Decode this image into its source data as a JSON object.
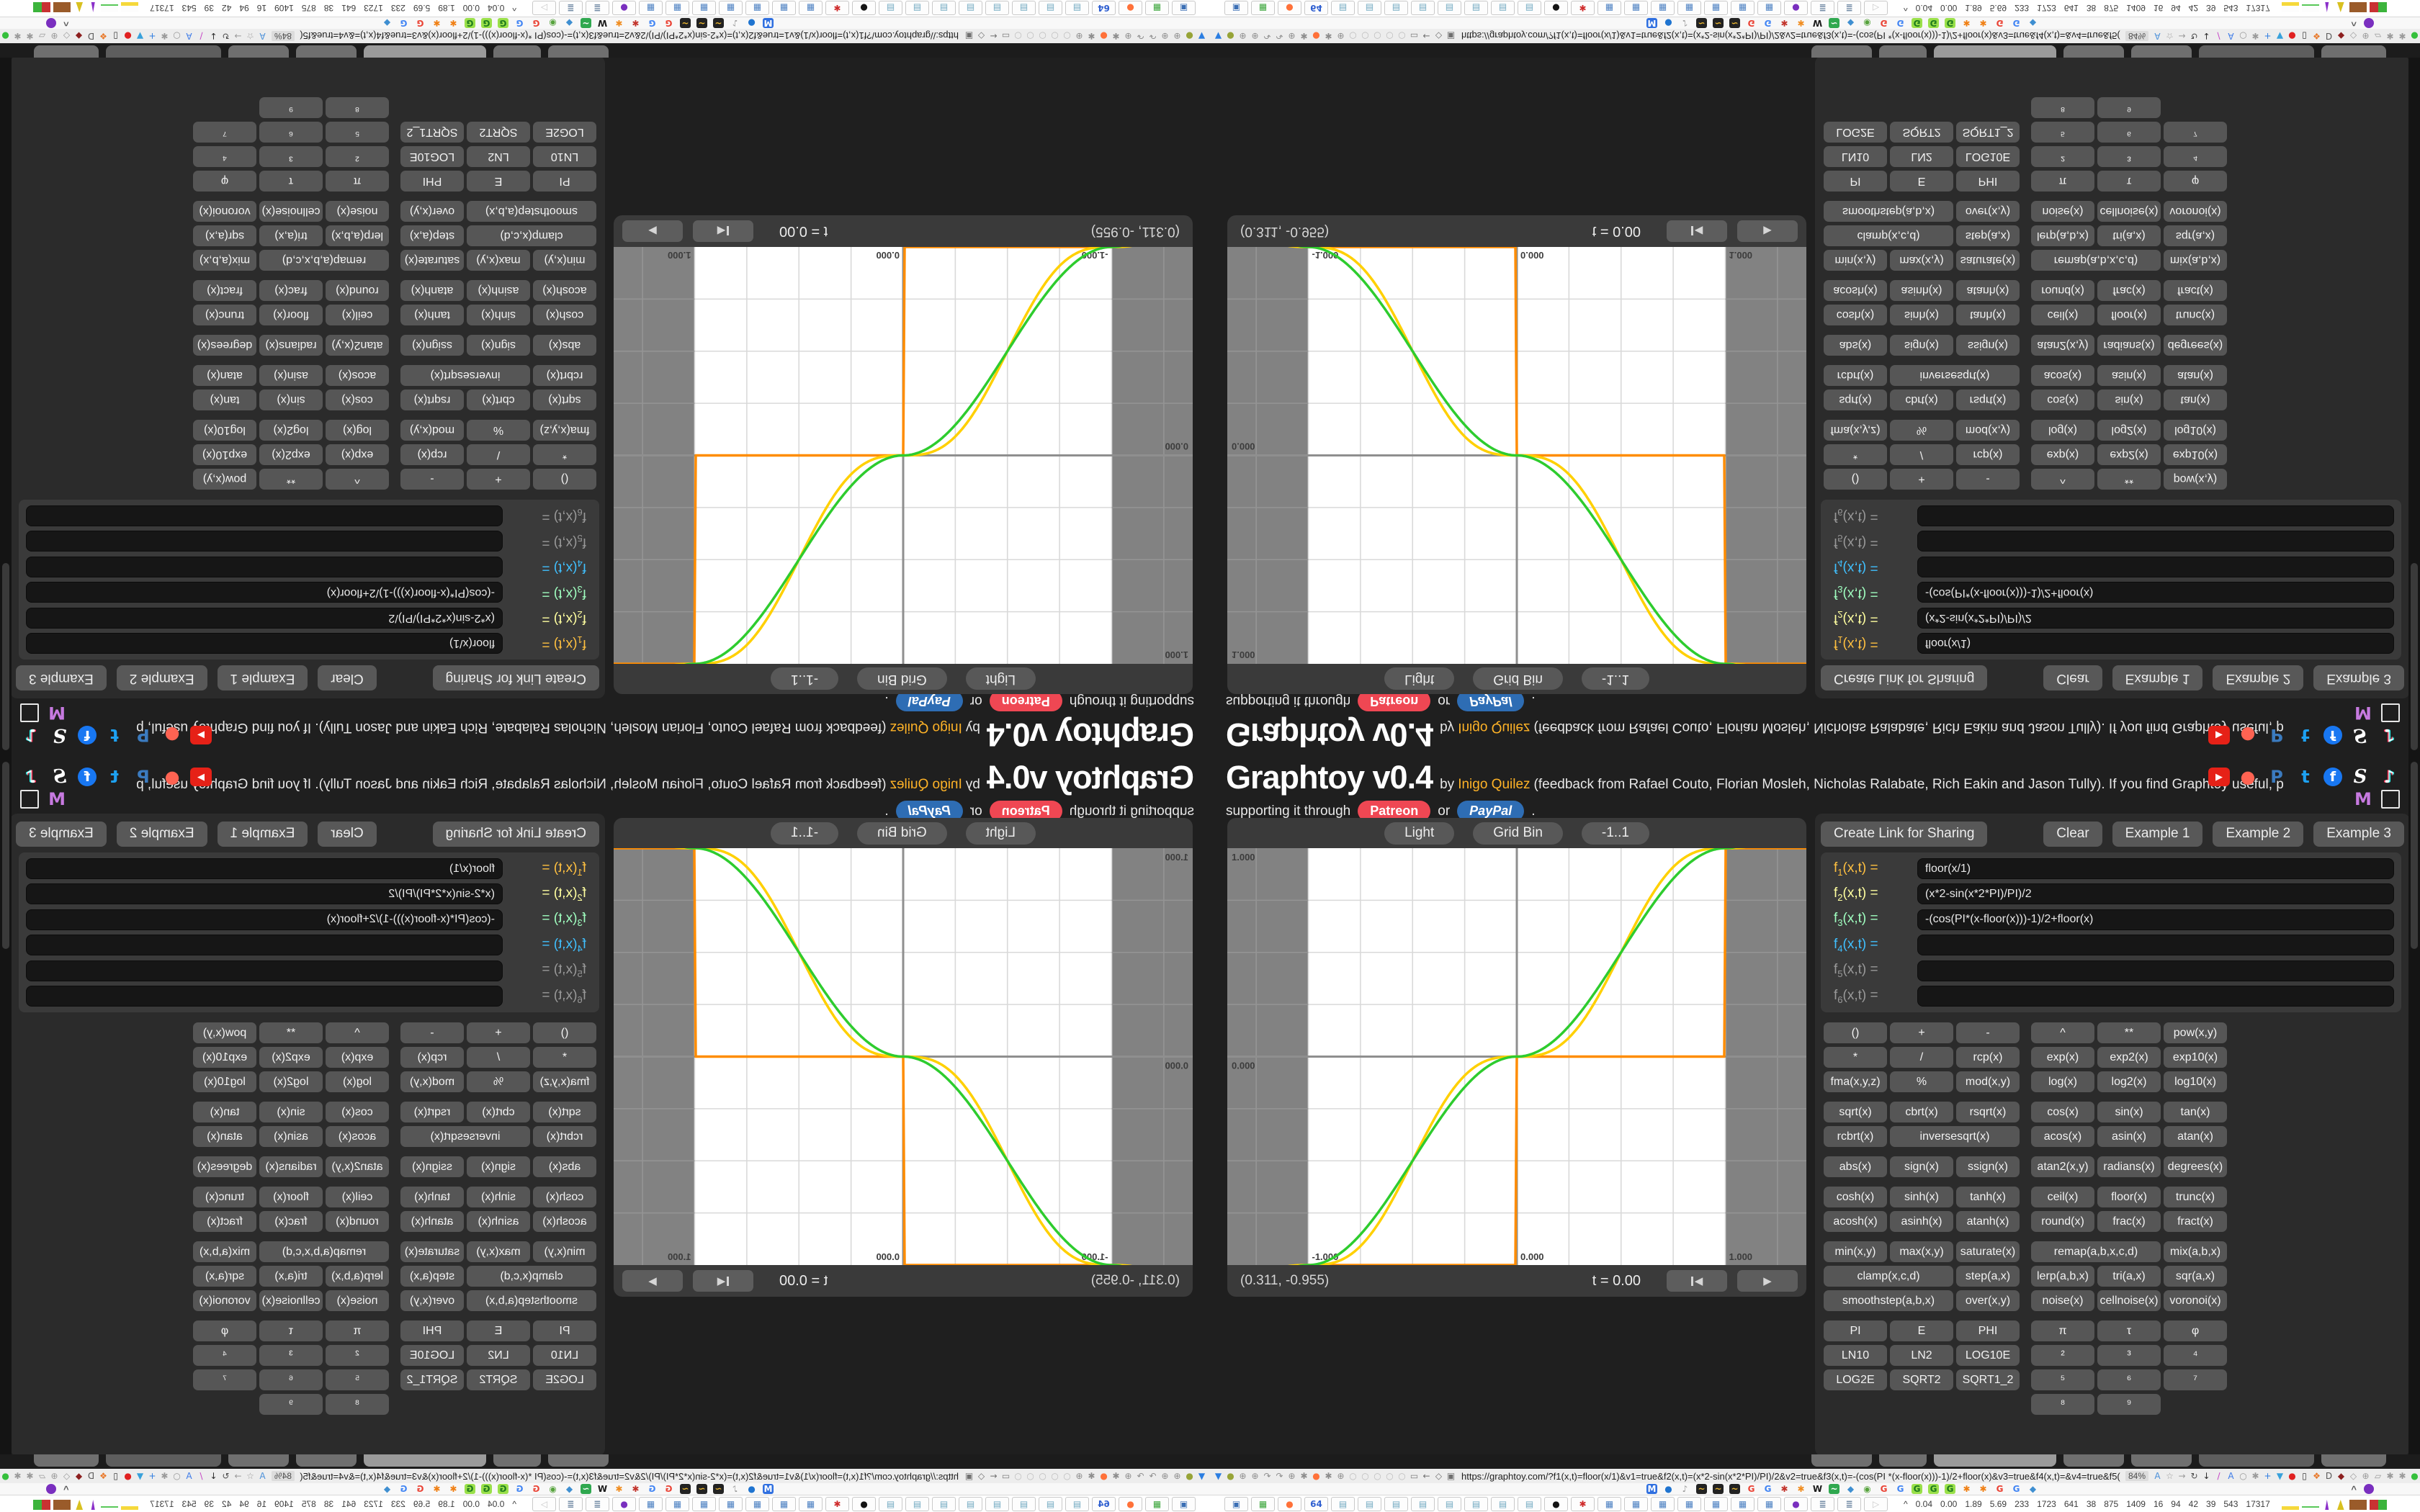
{
  "app": {
    "title": "Graphtoy v0.4",
    "byline": "by",
    "author": "Inigo Quilez",
    "feedback": "(feedback from Rafael Couto, Florian Mosleh, Nicholas Ralabate, Rich Eakin and Jason Tully). If you find Graphtoy useful, please consider",
    "support": "supporting it through",
    "patreon": "Patreon",
    "or": "or",
    "paypal": "PayPal",
    "period": ".",
    "colors": {
      "link": "#ffb327",
      "patreon": "#ef4753",
      "paypal": "#2e6db4"
    },
    "social": [
      {
        "n": "youtube-icon",
        "g": "▶",
        "bg": "#e62117",
        "fg": "#ffffff",
        "fs": "13px"
      },
      {
        "n": "patreon-icon",
        "g": "●",
        "bg": "none",
        "fg": "#ff6352",
        "fs": "24px"
      },
      {
        "n": "paypal-icon",
        "g": "P",
        "bg": "none",
        "fg": "#3b7bbf",
        "fs": "24px"
      },
      {
        "n": "twitter-icon",
        "g": "t",
        "bg": "none",
        "fg": "#1da1f2",
        "fs": "24px"
      },
      {
        "n": "facebook-icon",
        "g": "f",
        "bg": "#1877f2",
        "fg": "#ffffff",
        "fs": "19px",
        "round": true
      },
      {
        "n": "shadertoy-icon",
        "g": "S",
        "bg": "none",
        "fg": "#ffffff",
        "fs": "26px",
        "serif": true
      },
      {
        "n": "tiktok-icon",
        "g": "♪",
        "bg": "none",
        "fg": "#ffffff",
        "fs": "24px",
        "tiktok": true
      }
    ],
    "social_row2": [
      {
        "n": "mastodon-icon",
        "g": "M",
        "bg": "none",
        "fg": "#c77ae0",
        "fs": "24px"
      },
      {
        "n": "frame-icon",
        "g": "",
        "bg": "outline",
        "fg": "#e8e8e8",
        "fs": "12px"
      }
    ]
  },
  "graph": {
    "toolbar": {
      "light": "Light",
      "grid": "Grid Bin",
      "range": "-1..1"
    },
    "time": {
      "coords": "(0.311, -0.955)",
      "t": "t = 0.00"
    },
    "plot": {
      "x_labels": [
        "-1.000",
        "0.000",
        "1.000"
      ],
      "y_labels": [
        "1.000",
        "0.000"
      ],
      "x_range": [
        -1.3886,
        1.3886
      ],
      "y_range": [
        -1,
        1
      ],
      "grid_step": 0.25,
      "unit_box": [
        -1,
        1
      ],
      "outer_bg": "#828282",
      "inner_bg": "#ffffff",
      "grid_inner": "#d9d9d9",
      "grid_outer": "#959595",
      "axis": "#8f8f8f",
      "label_color": "#3c3c3c",
      "curves": [
        {
          "id": "f1",
          "expr": "floor(x/1)",
          "color": "#ff8c00"
        },
        {
          "id": "f2",
          "expr": "(x*2-sin(x*2*PI)/PI)/2",
          "color": "#ffd000"
        },
        {
          "id": "f3",
          "expr": "-(cos(PI*(x-floor(x)))-1)/2+floor(x)",
          "color": "#2ecc2e"
        }
      ]
    }
  },
  "formulas": {
    "share": "Create Link for Sharing",
    "clear": "Clear",
    "examples": [
      "Example 1",
      "Example 2",
      "Example 3"
    ],
    "rows": [
      {
        "fn": "f",
        "sub": "1",
        "args": "(x,t) =",
        "value": "floor(x/1)",
        "color": "#ffc040"
      },
      {
        "fn": "f",
        "sub": "2",
        "args": "(x,t) =",
        "value": "(x*2-sin(x*2*PI)/PI)/2",
        "color": "#ffffa0"
      },
      {
        "fn": "f",
        "sub": "3",
        "args": "(x,t) =",
        "value": "-(cos(PI*(x-floor(x)))-1)/2+floor(x)",
        "color": "#a0ffc0"
      },
      {
        "fn": "f",
        "sub": "4",
        "args": "(x,t) =",
        "value": "",
        "color": "#40c0ff"
      },
      {
        "fn": "f",
        "sub": "5",
        "args": "(x,t) =",
        "value": "",
        "color": "#999999"
      },
      {
        "fn": "f",
        "sub": "6",
        "args": "(x,t) =",
        "value": "",
        "color": "#999999"
      }
    ]
  },
  "buttons": {
    "rows": [
      [
        "()",
        "+",
        "-",
        "^",
        "**",
        "pow(x,y)"
      ],
      [
        "*",
        "/",
        "rcp(x)",
        "exp(x)",
        "exp2(x)",
        "exp10(x)"
      ],
      [
        "fma(x,y,z)",
        "%",
        "mod(x,y)",
        "log(x)",
        "log2(x)",
        "log10(x)"
      ],
      "gap",
      [
        "sqrt(x)",
        "cbrt(x)",
        "rsqrt(x)",
        "cos(x)",
        "sin(x)",
        "tan(x)"
      ],
      [
        "rcbrt(x)",
        {
          "t": "inversesqrt(x)",
          "s": 2
        },
        "acos(x)",
        "asin(x)",
        "atan(x)"
      ],
      "gap",
      [
        "abs(x)",
        "sign(x)",
        "ssign(x)",
        "atan2(x,y)",
        "radians(x)",
        "degrees(x)"
      ],
      "gap",
      [
        "cosh(x)",
        "sinh(x)",
        "tanh(x)",
        "ceil(x)",
        "floor(x)",
        "trunc(x)"
      ],
      [
        "acosh(x)",
        "asinh(x)",
        "atanh(x)",
        "round(x)",
        "frac(x)",
        "fract(x)"
      ],
      "gap",
      [
        "min(x,y)",
        "max(x,y)",
        "saturate(x)",
        {
          "t": "remap(a,b,x,c,d)",
          "s": 2
        },
        "mix(a,b,x)"
      ],
      [
        {
          "t": "clamp(x,c,d)",
          "s": 2
        },
        "step(a,x)",
        "lerp(a,b,x)",
        "tri(a,x)",
        "sqr(a,x)"
      ],
      [
        {
          "t": "smoothstep(a,b,x)",
          "s": 2
        },
        "over(x,y)",
        "noise(x)",
        "cellnoise(x)",
        "voronoi(x)"
      ],
      "gap",
      [
        "PI",
        "E",
        "PHI",
        "π",
        "τ",
        "φ"
      ],
      [
        "LN10",
        "LN2",
        "LOG10E",
        "²",
        "³",
        "⁴"
      ],
      [
        "LOG2E",
        "SQRT2",
        "SQRT1_2",
        "⁵",
        "⁶",
        "⁷"
      ],
      [
        null,
        null,
        null,
        "⁸",
        "⁹",
        null
      ]
    ]
  },
  "chrome": {
    "url": "https://graphtoy.com/?f1(x,t)=floor(x/1)&v1=true&f2(x,t)=(x*2-sin(x*2*PI)/PI)/2&v2=true&f3(x,t)=-(cos(PI *(x-floor(x)))-1)/2+floor(x)&v3=true&f4(x,t)=&v4=true&f5(x,t)=&v5=false",
    "zoom_badge": "84%",
    "tabs_left": 835,
    "tabs": [
      {
        "w": 84,
        "c": "#6f6f6f"
      },
      {
        "w": 66,
        "c": "#6f6f6f"
      },
      {
        "w": 170,
        "c": "#9b9b9b"
      },
      {
        "w": 84,
        "c": "#6f6f6f"
      },
      {
        "w": 84,
        "c": "#6f6f6f"
      },
      {
        "w": 160,
        "c": "#5e5e5e"
      },
      {
        "w": 90,
        "c": "#6f6f6f"
      }
    ],
    "nav_left": [
      {
        "n": "bookmark-flag-icon",
        "g": "▼",
        "c": "#2a7de1"
      },
      {
        "n": "olive-circle-icon",
        "g": "●",
        "c": "#97a437"
      },
      {
        "n": "globe-icon",
        "g": "⊕",
        "c": "#8d8d8d"
      },
      {
        "n": "globe-icon",
        "g": "⊕",
        "c": "#8d8d8d"
      },
      {
        "n": "redo-arc-icon",
        "g": "↷",
        "c": "#8d8d8d"
      },
      {
        "n": "redo-arc-icon",
        "g": "↷",
        "c": "#8d8d8d"
      },
      {
        "n": "globe-icon",
        "g": "⊕",
        "c": "#8d8d8d"
      },
      {
        "n": "wrench-icon",
        "g": "✱",
        "c": "#8d8d8d"
      },
      {
        "n": "firefox-icon",
        "g": "●",
        "c": "#ff7139"
      },
      {
        "n": "gear-icon",
        "g": "✱",
        "c": "#8d8d8d"
      },
      {
        "n": "globe-icon",
        "g": "⊕",
        "c": "#8d8d8d"
      },
      {
        "n": "dim-extension-icon",
        "g": "○",
        "c": "#bdbdbd"
      },
      {
        "n": "dim-extension-icon",
        "g": "○",
        "c": "#bdbdbd"
      },
      {
        "n": "dim-extension-icon",
        "g": "○",
        "c": "#bdbdbd"
      },
      {
        "n": "dim-extension-icon",
        "g": "○",
        "c": "#bdbdbd"
      },
      {
        "n": "dim-extension-icon",
        "g": "○",
        "c": "#bdbdbd"
      },
      {
        "n": "folder-icon",
        "g": "▭",
        "c": "#7d7d7d"
      },
      {
        "n": "back-arrow-icon",
        "g": "←",
        "c": "#6f6f6f"
      },
      {
        "n": "shield-icon",
        "g": "◇",
        "c": "#6f6f6f"
      },
      {
        "n": "lock-icon",
        "g": "▣",
        "c": "#6f6f6f"
      }
    ],
    "nav_right": [
      {
        "n": "reader-mode-icon",
        "g": "A",
        "c": "#4a90d9"
      },
      {
        "n": "bookmark-star-icon",
        "g": "☆",
        "c": "#9a9a9a"
      },
      {
        "n": "forward-arrow-icon",
        "g": "→",
        "c": "#9a9a9a"
      },
      {
        "n": "reload-icon",
        "g": "↻",
        "c": "#4d4d4d"
      },
      {
        "n": "download-icon",
        "g": "↓",
        "c": "#2b2b2b"
      },
      {
        "n": "highlighter-icon",
        "g": "/",
        "c": "#c543c5"
      },
      {
        "n": "translate-icon",
        "g": "A",
        "c": "#3d7be8"
      },
      {
        "n": "capsule-icon",
        "g": "○",
        "c": "#9a9a9a"
      },
      {
        "n": "gear-icon",
        "g": "✱",
        "c": "#9a9a9a"
      },
      {
        "n": "plus-icon",
        "g": "+",
        "c": "#2f7de1"
      },
      {
        "n": "downthemall-icon",
        "g": "▼",
        "c": "#38a1db"
      },
      {
        "n": "record-icon",
        "g": "●",
        "c": "#e02020"
      },
      {
        "n": "trash-icon",
        "g": "▯",
        "c": "#3c3c3c"
      },
      {
        "n": "share-node-icon",
        "g": "❖",
        "c": "#e8792b"
      },
      {
        "n": "dictionary-icon",
        "g": "D",
        "c": "#5a5a5a"
      },
      {
        "n": "ublock-icon",
        "g": "◆",
        "c": "#8c1f1f"
      },
      {
        "n": "shield-icon",
        "g": "◇",
        "c": "#9a9a9a"
      },
      {
        "n": "globe-icon",
        "g": "⊕",
        "c": "#9a9a9a"
      },
      {
        "n": "puzzle-icon",
        "g": "▱",
        "c": "#9a9a9a"
      },
      {
        "n": "wrench-icon",
        "g": "✱",
        "c": "#9a9a9a"
      },
      {
        "n": "gear-icon",
        "g": "✱",
        "c": "#9a9a9a"
      },
      {
        "n": "green-dot-icon",
        "g": "●",
        "c": "#35c03c"
      }
    ],
    "bookmarks": [
      {
        "n": "mail-favicon",
        "g": "M",
        "c": "#ffffff",
        "bg": "#2f6fe0"
      },
      {
        "n": "ball-favicon",
        "g": "●",
        "c": "#1f74d0",
        "bg": "none"
      },
      {
        "n": "mute-favicon",
        "g": "♪",
        "c": "#9a9a9a",
        "bg": "none"
      },
      {
        "n": "waveform-favicon",
        "g": "~",
        "c": "#e8b530",
        "bg": "#222222"
      },
      {
        "n": "waveform-favicon",
        "g": "~",
        "c": "#e8b530",
        "bg": "#222222"
      },
      {
        "n": "waveform-favicon",
        "g": "~",
        "c": "#e8b530",
        "bg": "#222222"
      },
      {
        "n": "google-favicon",
        "g": "G",
        "c": "#ea4335",
        "bg": "none"
      },
      {
        "n": "google-favicon",
        "g": "G",
        "c": "#4285f4",
        "bg": "none"
      },
      {
        "n": "flower-favicon",
        "g": "✱",
        "c": "#c2332b",
        "bg": "none"
      },
      {
        "n": "sun-favicon",
        "g": "✱",
        "c": "#f08c1e",
        "bg": "none"
      },
      {
        "n": "wikipedia-favicon",
        "g": "W",
        "c": "#1a1a1a",
        "bg": "none"
      },
      {
        "n": "wave-green-favicon",
        "g": "~",
        "c": "#ffffff",
        "bg": "#2fa84f"
      },
      {
        "n": "cube-favicon",
        "g": "◆",
        "c": "#3f8fd1",
        "bg": "none"
      },
      {
        "n": "compass-favicon",
        "g": "◉",
        "c": "#57a33d",
        "bg": "none"
      },
      {
        "n": "google-favicon",
        "g": "G",
        "c": "#ea4335",
        "bg": "none"
      },
      {
        "n": "google-favicon",
        "g": "G",
        "c": "#4285f4",
        "bg": "none"
      },
      {
        "n": "google-green-favicon",
        "g": "G",
        "c": "#1d7a1d",
        "bg": "#9ae04a"
      },
      {
        "n": "google-green-favicon",
        "g": "G",
        "c": "#1d7a1d",
        "bg": "#9ae04a"
      },
      {
        "n": "google-green-favicon",
        "g": "G",
        "c": "#1d7a1d",
        "bg": "#9ae04a"
      },
      {
        "n": "gear-orange-favicon",
        "g": "✱",
        "c": "#f07f13",
        "bg": "none"
      },
      {
        "n": "gear-orange-favicon",
        "g": "✱",
        "c": "#f07f13",
        "bg": "none"
      },
      {
        "n": "google-favicon",
        "g": "G",
        "c": "#ea4335",
        "bg": "none"
      },
      {
        "n": "google-favicon",
        "g": "G",
        "c": "#4285f4",
        "bg": "none"
      },
      {
        "n": "cube-favicon",
        "g": "◆",
        "c": "#3f8fd1",
        "bg": "none"
      }
    ],
    "taskbar": [
      {
        "n": "monitor-window-icon",
        "g": "▣",
        "c": "#3b6fb5"
      },
      {
        "n": "terminal-window-icon",
        "g": "▦",
        "c": "#37a437"
      },
      {
        "n": "firefox-window-icon",
        "g": "●",
        "c": "#ff7139"
      },
      {
        "n": "floppy64-window-icon",
        "g": "64",
        "c": "#2f5fd0"
      },
      {
        "n": "notepad-window-icon",
        "g": "▤",
        "c": "#6fa8c0"
      },
      {
        "n": "notepad-window-icon",
        "g": "▤",
        "c": "#6fa8c0"
      },
      {
        "n": "notepad-window-icon",
        "g": "▤",
        "c": "#6fa8c0"
      },
      {
        "n": "notepad-window-icon",
        "g": "▤",
        "c": "#6fa8c0"
      },
      {
        "n": "notepad-window-icon",
        "g": "▤",
        "c": "#6fa8c0"
      },
      {
        "n": "notepad-window-icon",
        "g": "▤",
        "c": "#6fa8c0"
      },
      {
        "n": "notepad-window-icon",
        "g": "▤",
        "c": "#6fa8c0"
      },
      {
        "n": "notepad-window-icon",
        "g": "▤",
        "c": "#6fa8c0"
      },
      {
        "n": "cat-window-icon",
        "g": "●",
        "c": "#141414"
      },
      {
        "n": "red-gear-window-icon",
        "g": "✱",
        "c": "#cf2b2b"
      },
      {
        "n": "calculator-window-icon",
        "g": "▦",
        "c": "#4a7fc1"
      },
      {
        "n": "calculator-window-icon",
        "g": "▦",
        "c": "#4a7fc1"
      },
      {
        "n": "calculator-window-icon",
        "g": "▦",
        "c": "#4a7fc1"
      },
      {
        "n": "calculator-window-icon",
        "g": "▦",
        "c": "#4a7fc1"
      },
      {
        "n": "calculator-window-icon",
        "g": "▦",
        "c": "#4a7fc1"
      },
      {
        "n": "calculator-window-icon",
        "g": "▦",
        "c": "#4a7fc1"
      },
      {
        "n": "calculator-window-icon",
        "g": "▦",
        "c": "#4a7fc1"
      },
      {
        "n": "owl-window-icon",
        "g": "●",
        "c": "#7a2fbf"
      },
      {
        "n": "scroll-window-icon",
        "g": "≣",
        "c": "#6a84a0"
      },
      {
        "n": "scroll-window-icon",
        "g": "≣",
        "c": "#6a84a0"
      },
      {
        "n": "plane-window-icon",
        "g": "▷",
        "c": "#c8c8c8"
      }
    ],
    "stats": [
      "0.04",
      "0.00",
      "1.89",
      "5.69",
      "233",
      "1723",
      "641",
      "38",
      "875",
      "1409",
      "16",
      "94",
      "42",
      "39",
      "543",
      "17317"
    ],
    "monitors": [
      "meter-yellow",
      "meter-green",
      "meter-purple",
      "meter-peak",
      "meter-brown",
      "meter-redgreen"
    ]
  }
}
